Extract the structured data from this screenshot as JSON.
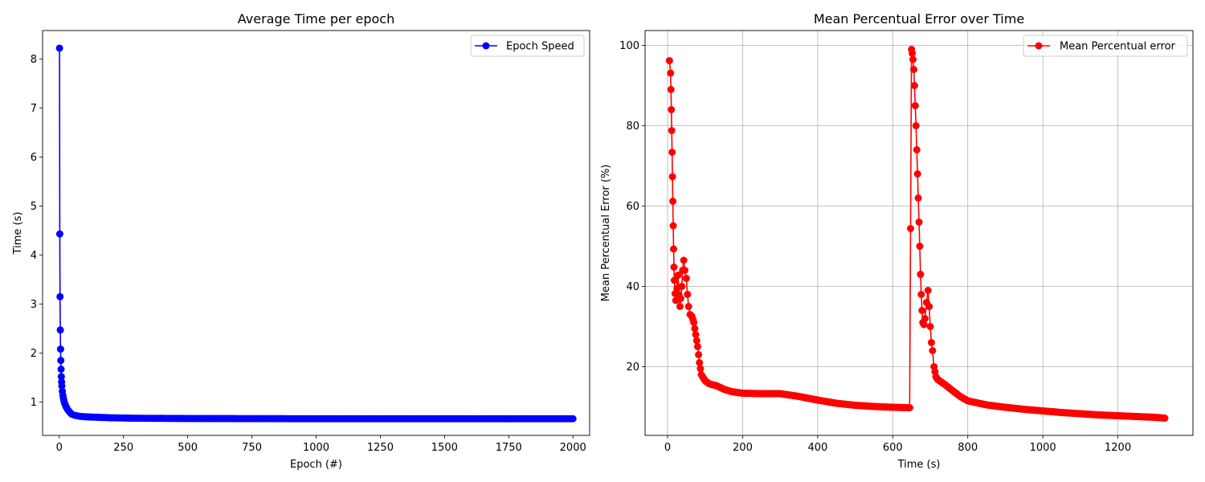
{
  "chart_data": [
    {
      "type": "line",
      "title": "Average Time per epoch",
      "xlabel": "Epoch (#)",
      "ylabel": "Time (s)",
      "xlim": [
        -65,
        2065
      ],
      "ylim": [
        0.32,
        8.58
      ],
      "xticks": [
        0,
        250,
        500,
        750,
        1000,
        1250,
        1500,
        1750,
        2000
      ],
      "yticks": [
        1,
        2,
        3,
        4,
        5,
        6,
        7,
        8
      ],
      "grid": false,
      "legend_position": "top-right",
      "series": [
        {
          "name": "Epoch Speed",
          "color": "#0000ff",
          "marker": "circle",
          "description": "first epoch slow, rapid decay, then flat near 0.66 s through epoch 2000",
          "points": [
            [
              1,
              8.22
            ],
            [
              2,
              4.43
            ],
            [
              3,
              3.15
            ],
            [
              4,
              2.47
            ],
            [
              5,
              2.08
            ],
            [
              6,
              1.85
            ],
            [
              7,
              1.67
            ],
            [
              8,
              1.52
            ],
            [
              9,
              1.41
            ],
            [
              10,
              1.33
            ],
            [
              12,
              1.22
            ],
            [
              14,
              1.14
            ],
            [
              16,
              1.08
            ],
            [
              18,
              1.03
            ],
            [
              20,
              0.99
            ],
            [
              23,
              0.95
            ],
            [
              26,
              0.91
            ],
            [
              30,
              0.87
            ],
            [
              35,
              0.83
            ],
            [
              40,
              0.8
            ],
            [
              45,
              0.77
            ],
            [
              50,
              0.75
            ],
            [
              60,
              0.73
            ],
            [
              70,
              0.72
            ],
            [
              80,
              0.71
            ],
            [
              100,
              0.7
            ],
            [
              150,
              0.69
            ],
            [
              200,
              0.68
            ],
            [
              300,
              0.67
            ],
            [
              500,
              0.665
            ],
            [
              1000,
              0.66
            ],
            [
              1500,
              0.66
            ],
            [
              2000,
              0.66
            ]
          ]
        }
      ]
    },
    {
      "type": "line",
      "title": "Mean Percentual Error over Time",
      "xlabel": "Time (s)",
      "ylabel": "Mean Percentual Error (%)",
      "xlim": [
        -60,
        1400
      ],
      "ylim": [
        2.9,
        103.7
      ],
      "xticks": [
        0,
        200,
        400,
        600,
        800,
        1000,
        1200
      ],
      "yticks": [
        20,
        40,
        60,
        80,
        100
      ],
      "grid": true,
      "legend_position": "top-right",
      "series": [
        {
          "name": "Mean Percentual error",
          "color": "#ff0000",
          "marker": "circle",
          "description": "error drops from ~96% to ~10% by 645 s, spikes to ~99% at 650 s (restart), then decays to ~7% by 1325 s",
          "points": [
            [
              5,
              96.2
            ],
            [
              8,
              93.1
            ],
            [
              9,
              89
            ],
            [
              10,
              84
            ],
            [
              11,
              78.8
            ],
            [
              12,
              73.4
            ],
            [
              13,
              67.3
            ],
            [
              14,
              61.2
            ],
            [
              15,
              55.1
            ],
            [
              16,
              49.3
            ],
            [
              17,
              44.8
            ],
            [
              18,
              41.5
            ],
            [
              20,
              38.2
            ],
            [
              22,
              36.5
            ],
            [
              25,
              39.5
            ],
            [
              28,
              42.8
            ],
            [
              30,
              38
            ],
            [
              33,
              35
            ],
            [
              35,
              37
            ],
            [
              38,
              40
            ],
            [
              40,
              44
            ],
            [
              43,
              46.5
            ],
            [
              46,
              44
            ],
            [
              50,
              42
            ],
            [
              53,
              38
            ],
            [
              56,
              35
            ],
            [
              60,
              33
            ],
            [
              65,
              32.5
            ],
            [
              70,
              31
            ],
            [
              75,
              28
            ],
            [
              80,
              25
            ],
            [
              85,
              21
            ],
            [
              90,
              18
            ],
            [
              100,
              16.5
            ],
            [
              110,
              15.8
            ],
            [
              120,
              15.5
            ],
            [
              130,
              15.3
            ],
            [
              150,
              14.4
            ],
            [
              170,
              13.8
            ],
            [
              200,
              13.4
            ],
            [
              250,
              13.3
            ],
            [
              300,
              13.3
            ],
            [
              350,
              12.6
            ],
            [
              400,
              11.7
            ],
            [
              450,
              10.9
            ],
            [
              500,
              10.4
            ],
            [
              550,
              10.1
            ],
            [
              600,
              9.9
            ],
            [
              645,
              9.8
            ],
            [
              650,
              99
            ],
            [
              652,
              98
            ],
            [
              654,
              96.5
            ],
            [
              656,
              94
            ],
            [
              658,
              90
            ],
            [
              660,
              85
            ],
            [
              662,
              80
            ],
            [
              664,
              74
            ],
            [
              666,
              68
            ],
            [
              668,
              62
            ],
            [
              670,
              56
            ],
            [
              672,
              50
            ],
            [
              674,
              43
            ],
            [
              676,
              38
            ],
            [
              678,
              34
            ],
            [
              680,
              31
            ],
            [
              683,
              30.5
            ],
            [
              686,
              32
            ],
            [
              690,
              36
            ],
            [
              694,
              39
            ],
            [
              697,
              35
            ],
            [
              700,
              30
            ],
            [
              703,
              26
            ],
            [
              706,
              24
            ],
            [
              710,
              20
            ],
            [
              715,
              17.5
            ],
            [
              720,
              16.8
            ],
            [
              740,
              15.5
            ],
            [
              760,
              14
            ],
            [
              780,
              12.6
            ],
            [
              800,
              11.5
            ],
            [
              850,
              10.5
            ],
            [
              900,
              9.9
            ],
            [
              950,
              9.4
            ],
            [
              1000,
              9
            ],
            [
              1050,
              8.6
            ],
            [
              1100,
              8.3
            ],
            [
              1150,
              8
            ],
            [
              1200,
              7.8
            ],
            [
              1250,
              7.6
            ],
            [
              1300,
              7.4
            ],
            [
              1325,
              7.2
            ]
          ]
        }
      ]
    }
  ]
}
